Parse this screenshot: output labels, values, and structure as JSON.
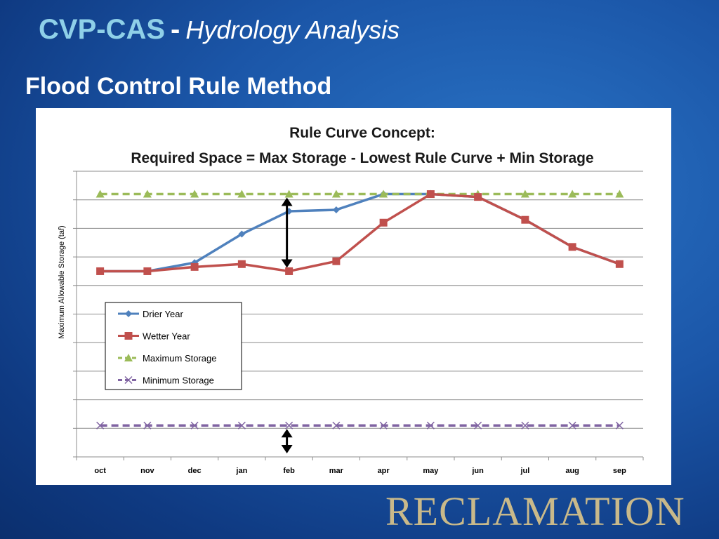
{
  "slide": {
    "title": "CVP-CAS",
    "separator": "-",
    "subtitle": "Hydrology Analysis",
    "heading": "Flood Control Rule Method",
    "brand": "RECLAMATION"
  },
  "colors": {
    "drier": "#4f81bd",
    "wetter": "#c0504d",
    "maximum": "#9bbb59",
    "minimum": "#8064a2",
    "title_text": "#8fd0e8"
  },
  "chart_data": {
    "type": "line",
    "title": "Rule Curve Concept:",
    "subtitle": "Required Space = Max Storage - Lowest Rule Curve + Min Storage",
    "xlabel": "",
    "ylabel": "Maximum Allowable Storage (taf)",
    "ylim": [
      0,
      10
    ],
    "grid": true,
    "legend_position": "center-left",
    "categories": [
      "oct",
      "nov",
      "dec",
      "jan",
      "feb",
      "mar",
      "apr",
      "may",
      "jun",
      "jul",
      "aug",
      "sep"
    ],
    "series": [
      {
        "name": "Drier Year",
        "color": "#4f81bd",
        "marker": "diamond",
        "dash": false,
        "values": [
          6.5,
          6.5,
          6.8,
          7.8,
          8.6,
          8.65,
          9.2,
          9.2,
          9.1,
          8.3,
          7.35,
          6.75
        ]
      },
      {
        "name": "Wetter Year",
        "color": "#c0504d",
        "marker": "square",
        "dash": false,
        "values": [
          6.5,
          6.5,
          6.65,
          6.75,
          6.5,
          6.85,
          8.2,
          9.2,
          9.1,
          8.3,
          7.35,
          6.75
        ]
      },
      {
        "name": "Maximum Storage",
        "color": "#9bbb59",
        "marker": "triangle",
        "dash": true,
        "values": [
          9.2,
          9.2,
          9.2,
          9.2,
          9.2,
          9.2,
          9.2,
          9.2,
          9.2,
          9.2,
          9.2,
          9.2
        ]
      },
      {
        "name": "Minimum Storage",
        "color": "#8064a2",
        "marker": "x",
        "dash": true,
        "values": [
          1.1,
          1.1,
          1.1,
          1.1,
          1.1,
          1.1,
          1.1,
          1.1,
          1.1,
          1.1,
          1.1,
          1.1
        ]
      }
    ],
    "annotations": [
      {
        "type": "double-arrow",
        "category": "feb",
        "from": 9.2,
        "to": 6.5
      },
      {
        "type": "double-arrow",
        "category": "feb",
        "from": 1.1,
        "to": 0
      }
    ]
  }
}
